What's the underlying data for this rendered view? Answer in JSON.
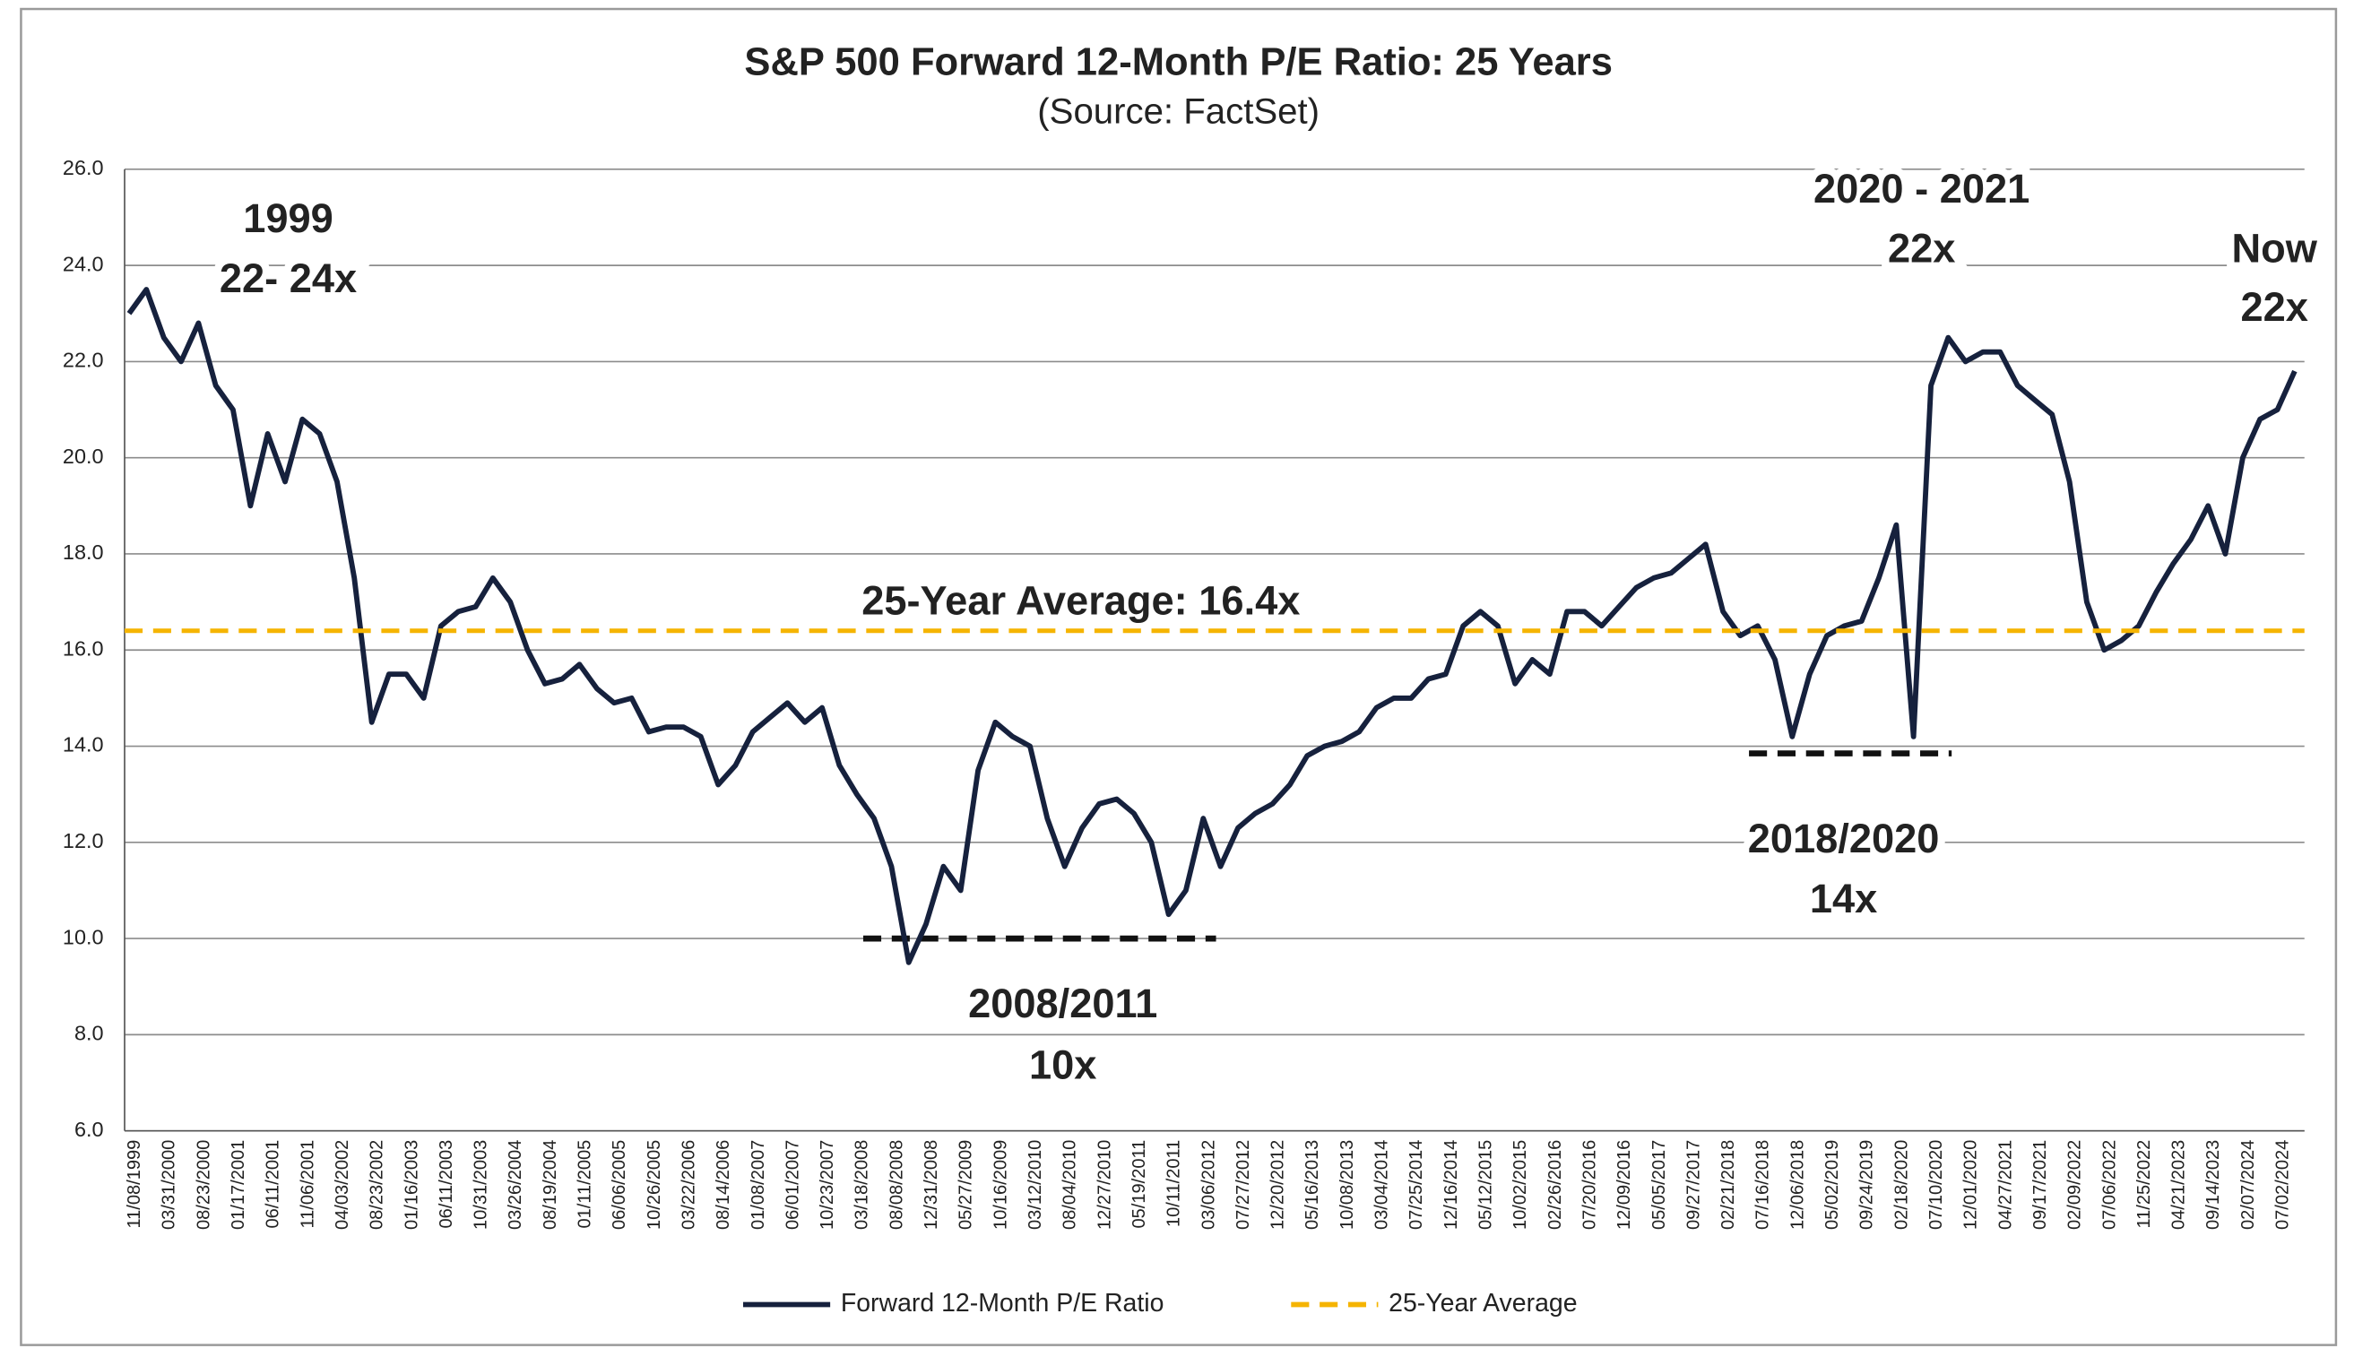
{
  "chart_data": {
    "type": "line",
    "title": "S&P 500 Forward 12-Month P/E Ratio: 25 Years",
    "subtitle": "(Source: FactSet)",
    "categories": [
      "11/08/1999",
      null,
      "03/31/2000",
      null,
      "08/23/2000",
      null,
      "01/17/2001",
      null,
      "06/11/2001",
      null,
      "11/06/2001",
      null,
      "04/03/2002",
      null,
      "08/23/2002",
      null,
      "01/16/2003",
      null,
      "06/11/2003",
      null,
      "10/31/2003",
      null,
      "03/26/2004",
      null,
      "08/19/2004",
      null,
      "01/11/2005",
      null,
      "06/06/2005",
      null,
      "10/26/2005",
      null,
      "03/22/2006",
      null,
      "08/14/2006",
      null,
      "01/08/2007",
      null,
      "06/01/2007",
      null,
      "10/23/2007",
      null,
      "03/18/2008",
      null,
      "08/08/2008",
      null,
      "12/31/2008",
      null,
      "05/27/2009",
      null,
      "10/16/2009",
      null,
      "03/12/2010",
      null,
      "08/04/2010",
      null,
      "12/27/2010",
      null,
      "05/19/2011",
      null,
      "10/11/2011",
      null,
      "03/06/2012",
      null,
      "07/27/2012",
      null,
      "12/20/2012",
      null,
      "05/16/2013",
      null,
      "10/08/2013",
      null,
      "03/04/2014",
      null,
      "07/25/2014",
      null,
      "12/16/2014",
      null,
      "05/12/2015",
      null,
      "10/02/2015",
      null,
      "02/26/2016",
      null,
      "07/20/2016",
      null,
      "12/09/2016",
      null,
      "05/05/2017",
      null,
      "09/27/2017",
      null,
      "02/21/2018",
      null,
      "07/16/2018",
      null,
      "12/06/2018",
      null,
      "05/02/2019",
      null,
      "09/24/2019",
      null,
      "02/18/2020",
      null,
      "07/10/2020",
      null,
      "12/01/2020",
      null,
      "04/27/2021",
      null,
      "09/17/2021",
      null,
      "02/09/2022",
      null,
      "07/06/2022",
      null,
      "11/25/2022",
      null,
      "04/21/2023",
      null,
      "09/14/2023",
      null,
      "02/07/2024",
      null,
      "07/02/2024",
      null
    ],
    "series": [
      {
        "name": "Forward 12-Month P/E Ratio",
        "color": "#16213d",
        "values": [
          23.0,
          23.5,
          22.5,
          22.0,
          22.8,
          21.5,
          21.0,
          19.0,
          20.5,
          19.5,
          20.8,
          20.5,
          19.5,
          17.5,
          14.5,
          15.5,
          15.5,
          15.0,
          16.5,
          16.8,
          16.9,
          17.5,
          17.0,
          16.0,
          15.3,
          15.4,
          15.7,
          15.2,
          14.9,
          15.0,
          14.3,
          14.4,
          14.4,
          14.2,
          13.2,
          13.6,
          14.3,
          14.6,
          14.9,
          14.5,
          14.8,
          13.6,
          13.0,
          12.5,
          11.5,
          9.5,
          10.3,
          11.5,
          11.0,
          13.5,
          14.5,
          14.2,
          14.0,
          12.5,
          11.5,
          12.3,
          12.8,
          12.9,
          12.6,
          12.0,
          10.5,
          11.0,
          12.5,
          11.5,
          12.3,
          12.6,
          12.8,
          13.2,
          13.8,
          14.0,
          14.1,
          14.3,
          14.8,
          15.0,
          15.0,
          15.4,
          15.5,
          16.5,
          16.8,
          16.5,
          15.3,
          15.8,
          15.5,
          16.8,
          16.8,
          16.5,
          16.9,
          17.3,
          17.5,
          17.6,
          17.9,
          18.2,
          16.8,
          16.3,
          16.5,
          15.8,
          14.2,
          15.5,
          16.3,
          16.5,
          16.6,
          17.5,
          18.6,
          14.2,
          21.5,
          22.5,
          22.0,
          22.2,
          22.2,
          21.5,
          21.2,
          20.9,
          19.5,
          17.0,
          16.0,
          16.2,
          16.5,
          17.2,
          17.8,
          18.3,
          19.0,
          18.0,
          20.0,
          20.8,
          21.0,
          21.8
        ]
      },
      {
        "name": "25-Year Average",
        "color": "#f5b400",
        "value": 16.4,
        "dashed": true
      }
    ],
    "support_levels": [
      10.0,
      13.85
    ],
    "annotations": [
      {
        "lines": [
          "1999",
          "22- 24x"
        ],
        "color": "#d7332a"
      },
      {
        "lines": [
          "2020 - 2021",
          "22x"
        ],
        "color": "#d7332a"
      },
      {
        "lines": [
          "Now",
          "22x"
        ],
        "color": "#d7332a"
      },
      {
        "lines": [
          "25-Year Average: 16.4x"
        ],
        "color": "#111111"
      },
      {
        "lines": [
          "2008/2011",
          "10x"
        ],
        "color": "#d7332a"
      },
      {
        "lines": [
          "2018/2020",
          "14x"
        ],
        "color": "#d7332a"
      }
    ],
    "ylim": [
      6,
      26
    ],
    "yticks": [
      {
        "value": 6,
        "label": "6.0"
      },
      {
        "value": 8,
        "label": "8.0"
      },
      {
        "value": 10,
        "label": "10.0"
      },
      {
        "value": 12,
        "label": "12.0"
      },
      {
        "value": 14,
        "label": "14.0"
      },
      {
        "value": 16,
        "label": "16.0"
      },
      {
        "value": 18,
        "label": "18.0"
      },
      {
        "value": 20,
        "label": "20.0"
      },
      {
        "value": 22,
        "label": "22.0"
      },
      {
        "value": 24,
        "label": "24.0"
      },
      {
        "value": 26,
        "label": "26.0"
      }
    ],
    "grid": true,
    "legend": "bottom"
  }
}
